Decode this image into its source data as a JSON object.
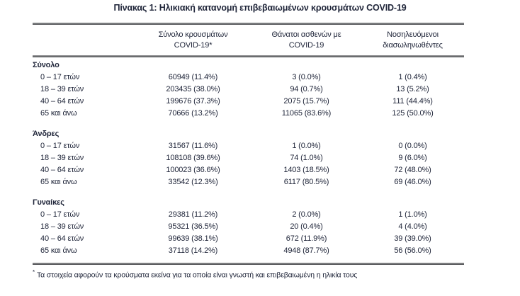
{
  "title": "Πίνακας 1: Ηλικιακή κατανομή επιβεβαιωμένων κρουσμάτων COVID-19",
  "colors": {
    "text": "#20263a",
    "rule": "#4e4f52",
    "background": "#ffffff"
  },
  "table": {
    "columns": [
      {
        "line1": "Σύνολο κρουσμάτων",
        "line2": "COVID-19*"
      },
      {
        "line1": "Θάνατοι ασθενών με",
        "line2": "COVID-19"
      },
      {
        "line1": "Νοσηλευόμενοι",
        "line2": "διασωληνωθέντες"
      }
    ],
    "sections": [
      {
        "name": "Σύνολο",
        "rows": [
          {
            "label": "0 – 17 ετών",
            "cases": "60949 (11.4%)",
            "deaths": "3 (0.0%)",
            "intubated": "1 (0.4%)"
          },
          {
            "label": "18 – 39 ετών",
            "cases": "203435 (38.0%)",
            "deaths": "94 (0.7%)",
            "intubated": "13 (5.2%)"
          },
          {
            "label": "40 – 64 ετών",
            "cases": "199676 (37.3%)",
            "deaths": "2075 (15.7%)",
            "intubated": "111 (44.4%)"
          },
          {
            "label": "65 και άνω",
            "cases": "70666 (13.2%)",
            "deaths": "11065 (83.6%)",
            "intubated": "125 (50.0%)"
          }
        ]
      },
      {
        "name": "Άνδρες",
        "rows": [
          {
            "label": "0 – 17 ετών",
            "cases": "31567 (11.6%)",
            "deaths": "1 (0.0%)",
            "intubated": "0 (0.0%)"
          },
          {
            "label": "18 – 39 ετών",
            "cases": "108108 (39.6%)",
            "deaths": "74 (1.0%)",
            "intubated": "9 (6.0%)"
          },
          {
            "label": "40 – 64 ετών",
            "cases": "100023 (36.6%)",
            "deaths": "1403 (18.5%)",
            "intubated": "72 (48.0%)"
          },
          {
            "label": "65 και άνω",
            "cases": "33542 (12.3%)",
            "deaths": "6117 (80.5%)",
            "intubated": "69 (46.0%)"
          }
        ]
      },
      {
        "name": "Γυναίκες",
        "rows": [
          {
            "label": "0 – 17 ετών",
            "cases": "29381 (11.2%)",
            "deaths": "2 (0.0%)",
            "intubated": "1 (1.0%)"
          },
          {
            "label": "18 – 39 ετών",
            "cases": "95321 (36.5%)",
            "deaths": "20 (0.4%)",
            "intubated": "4 (4.0%)"
          },
          {
            "label": "40 – 64 ετών",
            "cases": "99639 (38.1%)",
            "deaths": "672 (11.9%)",
            "intubated": "39 (39.0%)"
          },
          {
            "label": "65 και άνω",
            "cases": "37118 (14.2%)",
            "deaths": "4948 (87.7%)",
            "intubated": "56 (56.0%)"
          }
        ]
      }
    ]
  },
  "footnote": {
    "marker": "*",
    "text": "Τα στοιχεία αφορούν τα κρούσματα εκείνα για τα οποία είναι γνωστή και επιβεβαιωμένη η ηλικία τους"
  }
}
